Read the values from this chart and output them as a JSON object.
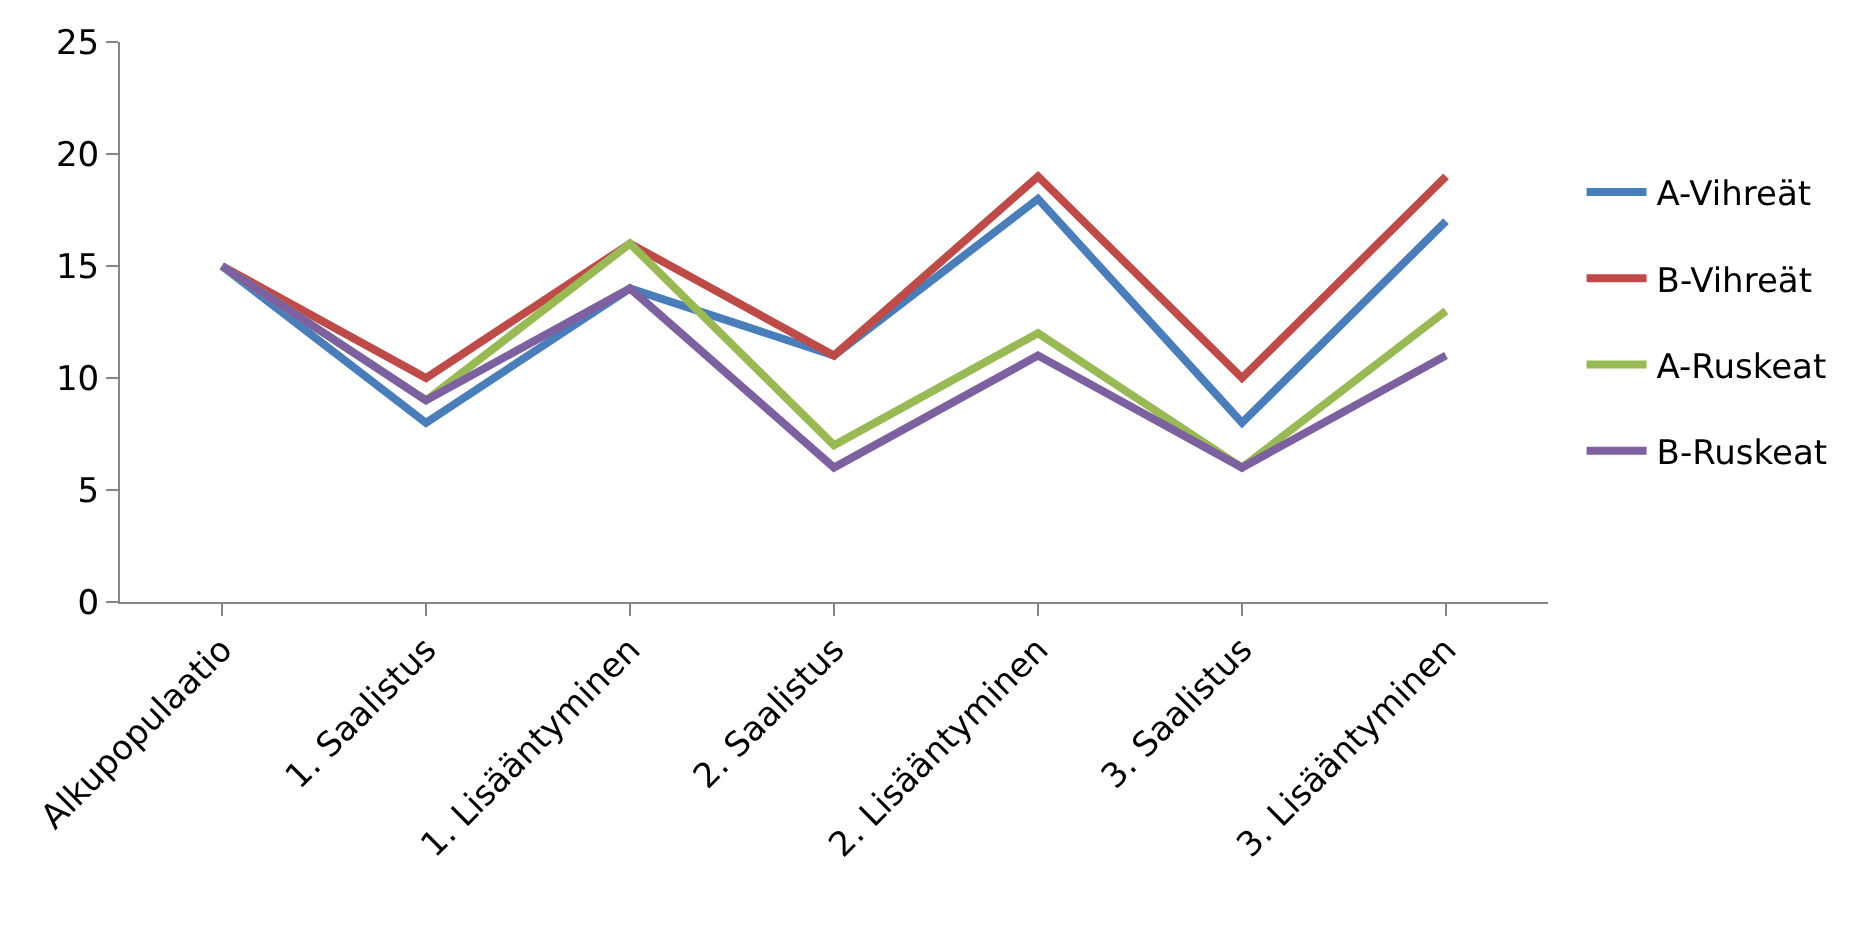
{
  "chart_data": {
    "type": "line",
    "categories": [
      "Alkupopulaatio",
      "1. Saalistus",
      "1. Lisääntyminen",
      "2. Saalistus",
      "2. Lisääntyminen",
      "3. Saalistus",
      "3. Lisääntyminen"
    ],
    "series": [
      {
        "name": "A-Vihreät",
        "color": "#4a7ebb",
        "values": [
          15,
          8,
          14,
          11,
          18,
          8,
          17
        ]
      },
      {
        "name": "B-Vihreät",
        "color": "#be4b48",
        "values": [
          15,
          10,
          16,
          11,
          19,
          10,
          19
        ]
      },
      {
        "name": "A-Ruskeat",
        "color": "#98b954",
        "values": [
          15,
          9,
          16,
          7,
          12,
          6,
          13
        ]
      },
      {
        "name": "B-Ruskeat",
        "color": "#7d60a0",
        "values": [
          15,
          9,
          14,
          6,
          11,
          6,
          11
        ]
      }
    ],
    "ylim": [
      0,
      25
    ],
    "yticks": [
      0,
      5,
      10,
      15,
      20,
      25
    ],
    "legend": "right",
    "marker": "none",
    "line_style": "solid"
  }
}
